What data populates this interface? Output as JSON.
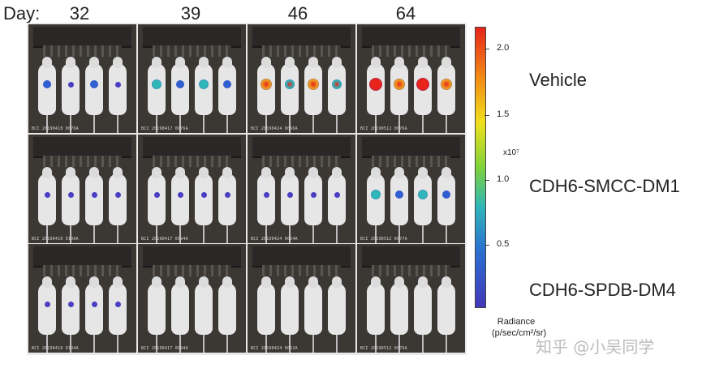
{
  "header": {
    "day_label": "Day:",
    "days": [
      "32",
      "39",
      "46",
      "64"
    ]
  },
  "rows": [
    {
      "label": "Vehicle",
      "captions": [
        "BCI 20190410 0076A",
        "BCI 20190417 0076A",
        "BCI 20190424 0066A",
        "BCI 20190512 0076A"
      ],
      "signal": [
        2,
        3,
        4,
        5
      ]
    },
    {
      "label": "CDH6-SMCC-DM1",
      "captions": [
        "BCI 20190410 0100A",
        "BCI 20190417 0094A",
        "BCI 20190424 0054A",
        "BCI 20190512 0077A"
      ],
      "signal": [
        1,
        1,
        1,
        3
      ]
    },
    {
      "label": "CDH6-SPDB-DM4",
      "captions": [
        "BCI 20190410 0104A",
        "BCI 20190417 0094A",
        "BCI 20190424 0052A",
        "BCI 20190512 0079A"
      ],
      "signal": [
        1,
        0,
        0,
        0
      ]
    }
  ],
  "scale": {
    "ticks": [
      "2.0",
      "1.5",
      "1.0",
      "0.5"
    ],
    "exponent": "x10⁷",
    "title": "Radiance",
    "units": "(p/sec/cm²/sr)"
  },
  "watermark": "知乎 @小吴同学"
}
